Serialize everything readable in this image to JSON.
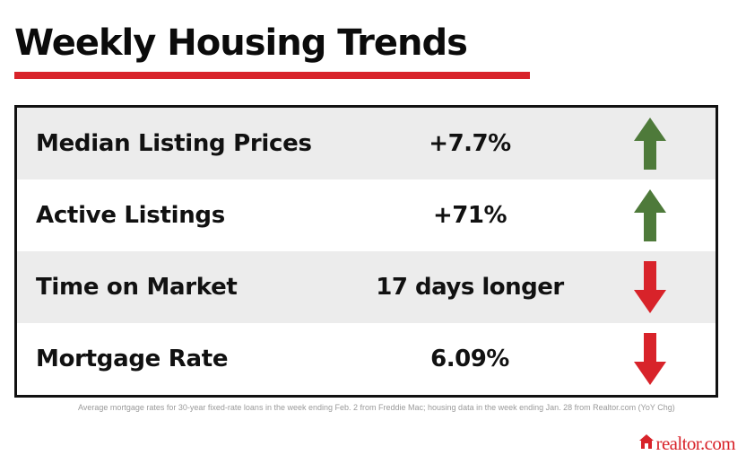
{
  "title": "Weekly Housing Trends",
  "colors": {
    "accent_red": "#d8232a",
    "up_green": "#4e7a3a",
    "down_red": "#d8232a"
  },
  "rows": [
    {
      "label": "Median Listing Prices",
      "value": "+7.7%",
      "trend": "up",
      "icon": "arrow-up-icon"
    },
    {
      "label": "Active Listings",
      "value": "+71%",
      "trend": "up",
      "icon": "arrow-up-icon"
    },
    {
      "label": "Time on Market",
      "value": "17 days longer",
      "trend": "down",
      "icon": "arrow-down-icon"
    },
    {
      "label": "Mortgage Rate",
      "value": "6.09%",
      "trend": "down",
      "icon": "arrow-down-icon"
    }
  ],
  "footnote": "Average mortgage rates for 30-year fixed-rate loans in the week ending Feb. 2 from Freddie Mac; housing data in the week ending Jan. 28 from Realtor.com (YoY Chg)",
  "brand": {
    "text": "realtor.com",
    "icon": "house-logo-icon"
  }
}
